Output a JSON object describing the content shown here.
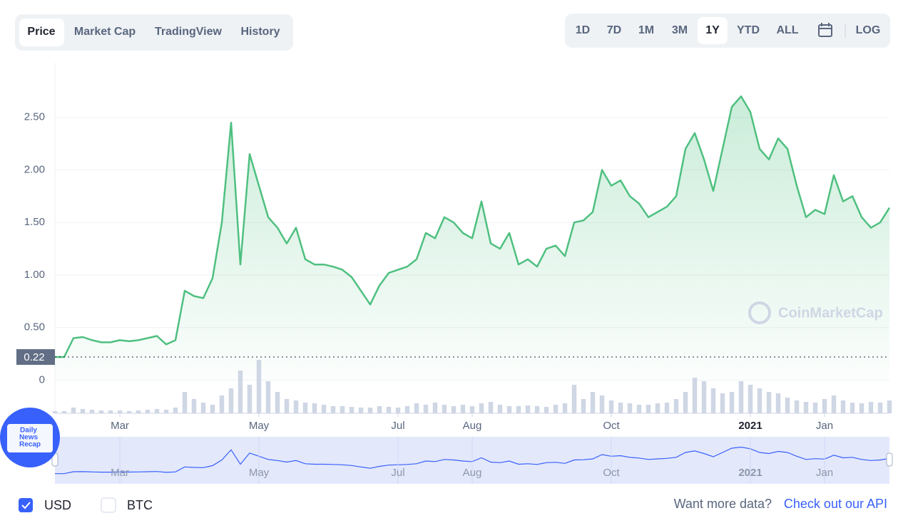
{
  "tabs": [
    "Price",
    "Market Cap",
    "TradingView",
    "History"
  ],
  "ranges": [
    "1D",
    "7D",
    "1M",
    "3M",
    "1Y",
    "YTD",
    "ALL",
    "LOG"
  ],
  "watermark": "CoinMarketCap",
  "badge": [
    "Daily",
    "News",
    "Recap"
  ],
  "currencies": [
    "USD",
    "BTC"
  ],
  "footer": {
    "prompt": "Want more data?",
    "link": "Check out our API"
  },
  "chart_data": {
    "type": "line",
    "color": "#4fc080",
    "current_value": 0.22,
    "categories": [
      null,
      null,
      null,
      null,
      null,
      null,
      null,
      "Mar",
      null,
      null,
      null,
      null,
      null,
      null,
      null,
      null,
      null,
      null,
      null,
      null,
      null,
      null,
      "May",
      null,
      null,
      null,
      null,
      null,
      null,
      null,
      null,
      null,
      null,
      null,
      null,
      null,
      null,
      "Jul",
      null,
      null,
      null,
      null,
      null,
      null,
      null,
      "Aug",
      null,
      null,
      null,
      null,
      null,
      null,
      null,
      null,
      null,
      null,
      null,
      null,
      null,
      null,
      "Oct",
      null,
      null,
      null,
      null,
      null,
      null,
      null,
      null,
      null,
      null,
      null,
      null,
      null,
      null,
      "2021",
      null,
      null,
      null,
      null,
      null,
      null,
      null,
      "Jan",
      null,
      null,
      null,
      null,
      null,
      null,
      null
    ],
    "values": [
      0.22,
      0.22,
      0.4,
      0.41,
      0.38,
      0.36,
      0.36,
      0.38,
      0.37,
      0.38,
      0.4,
      0.42,
      0.34,
      0.38,
      0.85,
      0.8,
      0.78,
      0.97,
      1.5,
      2.45,
      1.1,
      2.15,
      1.85,
      1.55,
      1.45,
      1.3,
      1.45,
      1.15,
      1.1,
      1.1,
      1.08,
      1.05,
      0.98,
      0.85,
      0.72,
      0.9,
      1.02,
      1.05,
      1.08,
      1.15,
      1.4,
      1.35,
      1.55,
      1.5,
      1.4,
      1.35,
      1.7,
      1.3,
      1.25,
      1.4,
      1.1,
      1.15,
      1.08,
      1.25,
      1.28,
      1.18,
      1.5,
      1.52,
      1.6,
      2.0,
      1.85,
      1.9,
      1.75,
      1.68,
      1.55,
      1.6,
      1.65,
      1.75,
      2.2,
      2.35,
      2.1,
      1.8,
      2.2,
      2.6,
      2.7,
      2.55,
      2.2,
      2.1,
      2.3,
      2.2,
      1.85,
      1.55,
      1.62,
      1.58,
      1.95,
      1.7,
      1.75,
      1.55,
      1.45,
      1.5,
      1.64
    ],
    "volume": [
      3,
      3,
      8,
      6,
      5,
      4,
      4,
      4,
      3,
      4,
      5,
      6,
      5,
      8,
      30,
      20,
      15,
      12,
      25,
      35,
      60,
      40,
      75,
      45,
      30,
      20,
      18,
      15,
      14,
      12,
      10,
      10,
      9,
      8,
      8,
      10,
      9,
      8,
      10,
      14,
      12,
      15,
      12,
      10,
      12,
      10,
      14,
      16,
      12,
      10,
      10,
      11,
      10,
      9,
      12,
      14,
      40,
      20,
      30,
      25,
      18,
      15,
      14,
      12,
      12,
      14,
      15,
      20,
      30,
      50,
      45,
      35,
      28,
      30,
      45,
      40,
      35,
      30,
      28,
      22,
      18,
      16,
      15,
      20,
      25,
      18,
      15,
      14,
      16,
      15,
      18
    ],
    "ylim": [
      0,
      3.02
    ],
    "yticks": [
      0,
      {
        "value": 0.5,
        "label": "0.50"
      },
      {
        "value": 1,
        "label": "1.00"
      },
      {
        "value": 1.5,
        "label": "1.50"
      },
      {
        "value": 2,
        "label": "2.00"
      },
      {
        "value": 2.5,
        "label": "2.50"
      }
    ],
    "grid": true
  }
}
